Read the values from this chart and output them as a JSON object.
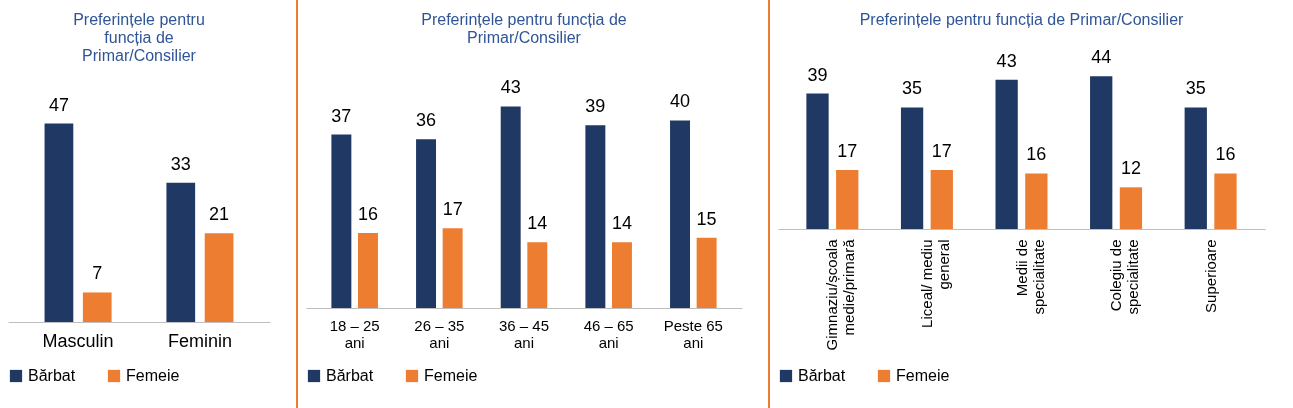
{
  "chart_data": [
    {
      "type": "bar",
      "title": "Preferințele pentru funcția de Primar/Consilier",
      "categories": [
        "Masculin",
        "Feminin"
      ],
      "series": [
        {
          "name": "Bărbat",
          "color": "#203864",
          "values": [
            47,
            33
          ]
        },
        {
          "name": "Femeie",
          "color": "#ed7d31",
          "values": [
            7,
            21
          ]
        }
      ],
      "data_labels": true,
      "legend": "bottom"
    },
    {
      "type": "bar",
      "title": "Preferințele pentru funcția de Primar/Consilier",
      "categories": [
        "18 – 25 ani",
        "26 – 35 ani",
        "36 – 45 ani",
        "46 – 65 ani",
        "Peste 65 ani"
      ],
      "series": [
        {
          "name": "Bărbat",
          "color": "#203864",
          "values": [
            37,
            36,
            43,
            39,
            40
          ]
        },
        {
          "name": "Femeie",
          "color": "#ed7d31",
          "values": [
            16,
            17,
            14,
            14,
            15
          ]
        }
      ],
      "data_labels": true,
      "legend": "bottom"
    },
    {
      "type": "bar",
      "title": "Preferințele pentru funcția de Primar/Consilier",
      "categories": [
        "Gimnaziu/școala medie/primară",
        "Liceal/ mediu general",
        "Medii de specialitate",
        "Colegiu de specialitate",
        "Superioare"
      ],
      "series": [
        {
          "name": "Bărbat",
          "color": "#203864",
          "values": [
            39,
            35,
            43,
            44,
            35
          ]
        },
        {
          "name": "Femeie",
          "color": "#ed7d31",
          "values": [
            17,
            17,
            16,
            12,
            16
          ]
        }
      ],
      "data_labels": true,
      "legend": "bottom"
    }
  ]
}
